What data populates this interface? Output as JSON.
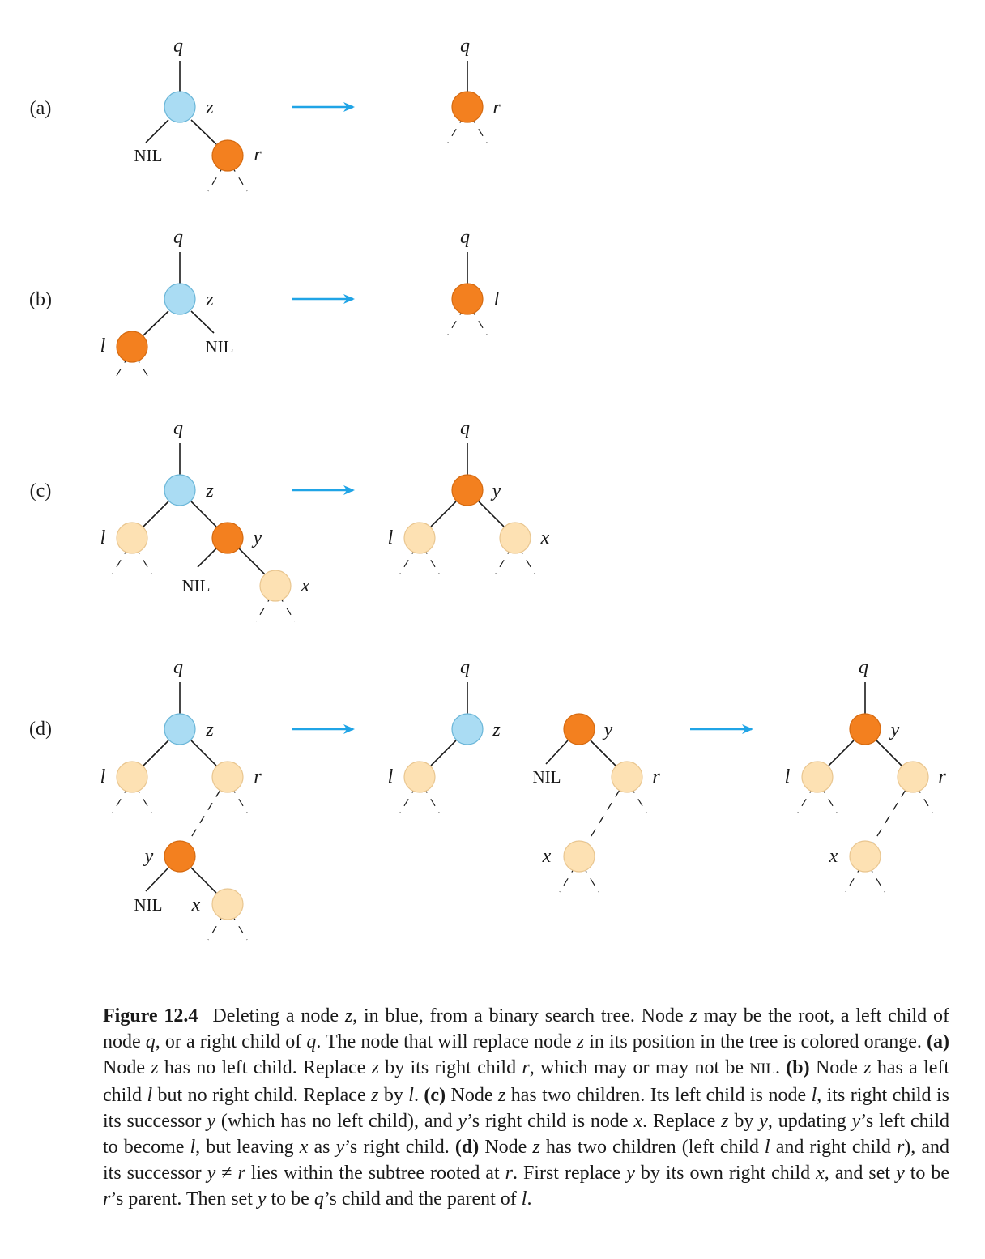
{
  "colors": {
    "deleted": "#aadcf3",
    "deleted_stroke": "#6ab6d8",
    "replacement": "#f3801f",
    "replacement_stroke": "#d66a10",
    "other": "#fde1b3",
    "other_stroke": "#e9c690",
    "arrow": "#20a4e6"
  },
  "panels": [
    {
      "label": "(a)",
      "arrow_count": 1,
      "node_labels": {
        "q_left": "q",
        "z": "z",
        "nil": "NIL",
        "r": "r",
        "q_right": "q",
        "r_right": "r"
      }
    },
    {
      "label": "(b)",
      "arrow_count": 1,
      "node_labels": {
        "q_left": "q",
        "z": "z",
        "l": "l",
        "nil": "NIL",
        "q_right": "q",
        "l_right": "l"
      }
    },
    {
      "label": "(c)",
      "arrow_count": 1,
      "node_labels": {
        "q_left": "q",
        "z": "z",
        "l": "l",
        "y": "y",
        "nil": "NIL",
        "x": "x",
        "q_right": "q",
        "y_right": "y",
        "l_right": "l",
        "x_right": "x"
      }
    },
    {
      "label": "(d)",
      "arrow_count": 2,
      "node_labels": {
        "q1": "q",
        "z1": "z",
        "l1": "l",
        "r1": "r",
        "y1": "y",
        "nil1": "NIL",
        "x1": "x",
        "q2": "q",
        "z2": "z",
        "l2": "l",
        "y2": "y",
        "nil2": "NIL",
        "r2": "r",
        "x2": "x",
        "q3": "q",
        "y3": "y",
        "l3": "l",
        "r3": "r",
        "x3": "x"
      }
    }
  ],
  "caption": {
    "figure_number": "Figure 12.4",
    "sentence_1": "Deleting a node z, in blue, from a binary search tree. Node z may be the root, a left child of node q, or a right child of q. The node that will replace node z in its position in the tree is colored orange.",
    "part_a_label": "(a)",
    "part_a": "Node z has no left child. Replace z by its right child r, which may or may not be NIL.",
    "part_b_label": "(b)",
    "part_b": "Node z has a left child l but no right child. Replace z by l.",
    "part_c_label": "(c)",
    "part_c": "Node z has two children. Its left child is node l, its right child is its successor y (which has no left child), and y’s right child is node x. Replace z by y, updating y’s left child to become l, but leaving x as y’s right child.",
    "part_d_label": "(d)",
    "part_d": "Node z has two children (left child l and right child r), and its successor y ≠ r lies within the subtree rooted at r. First replace y by its own right child x, and set y to be r’s parent. Then set y to be q’s child and the parent of l."
  }
}
